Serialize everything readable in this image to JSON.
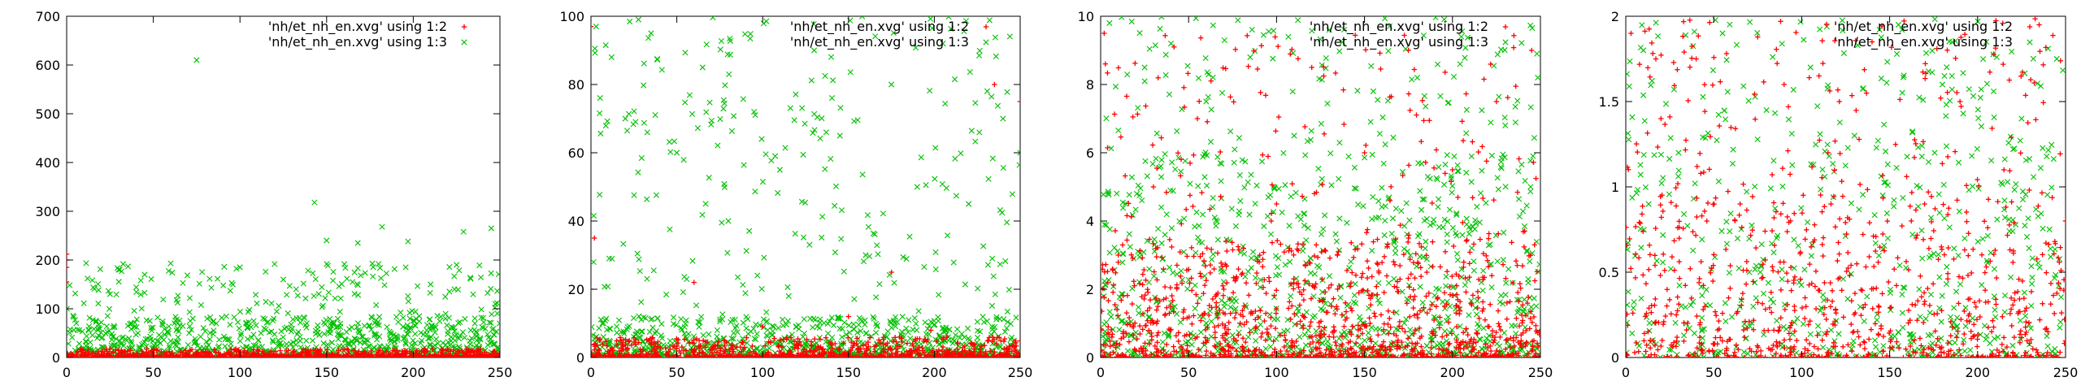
{
  "chart_data": [
    {
      "type": "scatter",
      "xlim": [
        0,
        250
      ],
      "ylim": [
        0,
        700
      ],
      "x_ticks": [
        0,
        50,
        100,
        150,
        200,
        250
      ],
      "y_ticks": [
        0,
        100,
        200,
        300,
        400,
        500,
        600,
        700
      ],
      "grid": false,
      "legend_position": "top-right",
      "series": [
        {
          "name": "'nh/et_nh_en.xvg' using 1:2",
          "color": "#ff0000",
          "marker": "plus",
          "points": [
            [
              0,
              212
            ],
            [
              0,
              200
            ],
            [
              0,
              185
            ],
            [
              0,
              155
            ],
            [
              20,
              6
            ],
            [
              45,
              4
            ],
            [
              90,
              3
            ],
            [
              110,
              8
            ],
            [
              135,
              5
            ],
            [
              160,
              2
            ],
            [
              190,
              7
            ],
            [
              210,
              4
            ],
            [
              235,
              6
            ],
            [
              248,
              3
            ]
          ]
        },
        {
          "name": "'nh/et_nh_en.xvg' using 1:3",
          "color": "#00c000",
          "marker": "cross",
          "points": [
            [
              75,
              610
            ],
            [
              143,
              318
            ],
            [
              182,
              268
            ],
            [
              229,
              258
            ],
            [
              197,
              238
            ],
            [
              168,
              235
            ],
            [
              150,
              240
            ],
            [
              60,
              193
            ],
            [
              100,
              185
            ],
            [
              225,
              190
            ],
            [
              180,
              192
            ],
            [
              30,
              180
            ],
            [
              45,
              170
            ],
            [
              245,
              265
            ],
            [
              16,
              141
            ],
            [
              25,
              130
            ],
            [
              125,
              160
            ],
            [
              210,
              150
            ]
          ]
        }
      ]
    },
    {
      "type": "scatter",
      "xlim": [
        0,
        250
      ],
      "ylim": [
        0,
        100
      ],
      "x_ticks": [
        0,
        50,
        100,
        150,
        200,
        250
      ],
      "y_ticks": [
        0,
        20,
        40,
        60,
        80,
        100
      ],
      "grid": false,
      "legend_position": "top-right",
      "series": [
        {
          "name": "'nh/et_nh_en.xvg' using 1:2",
          "color": "#ff0000",
          "marker": "plus",
          "points": [
            [
              0,
              97
            ],
            [
              0,
              20
            ],
            [
              2,
              35
            ],
            [
              60,
              22
            ],
            [
              150,
              12
            ],
            [
              198,
              8
            ],
            [
              235,
              80
            ],
            [
              250,
              75
            ],
            [
              5,
              5
            ],
            [
              100,
              9
            ],
            [
              175,
              25
            ]
          ]
        },
        {
          "name": "'nh/et_nh_en.xvg' using 1:3",
          "color": "#00c000",
          "marker": "cross",
          "points": [
            [
              3,
              97
            ],
            [
              12,
              88
            ],
            [
              20,
              70
            ],
            [
              35,
              95
            ],
            [
              50,
              60
            ],
            [
              65,
              85
            ],
            [
              80,
              40
            ],
            [
              95,
              72
            ],
            [
              110,
              55
            ],
            [
              130,
              90
            ],
            [
              145,
              65
            ],
            [
              160,
              30
            ],
            [
              175,
              80
            ],
            [
              190,
              50
            ],
            [
              205,
              92
            ],
            [
              220,
              45
            ],
            [
              240,
              70
            ],
            [
              250,
              60
            ]
          ]
        }
      ]
    },
    {
      "type": "scatter",
      "xlim": [
        0,
        250
      ],
      "ylim": [
        0,
        10
      ],
      "x_ticks": [
        0,
        50,
        100,
        150,
        200,
        250
      ],
      "y_ticks": [
        0,
        2,
        4,
        6,
        8,
        10
      ],
      "grid": false,
      "legend_position": "top-right",
      "series": [
        {
          "name": "'nh/et_nh_en.xvg' using 1:2",
          "color": "#ff0000",
          "marker": "plus",
          "points": [
            [
              2,
              9.5
            ],
            [
              10,
              3
            ],
            [
              30,
              5
            ],
            [
              55,
              7
            ],
            [
              70,
              2
            ],
            [
              100,
              4.5
            ],
            [
              120,
              8.5
            ],
            [
              150,
              6
            ],
            [
              175,
              3.5
            ],
            [
              200,
              5.5
            ],
            [
              225,
              7.5
            ],
            [
              245,
              9
            ]
          ]
        },
        {
          "name": "'nh/et_nh_en.xvg' using 1:3",
          "color": "#00c000",
          "marker": "cross",
          "points": [
            [
              5,
              9.8
            ],
            [
              25,
              8.5
            ],
            [
              40,
              9.2
            ],
            [
              60,
              7.5
            ],
            [
              85,
              8.8
            ],
            [
              110,
              6.5
            ],
            [
              130,
              9.6
            ],
            [
              155,
              7.8
            ],
            [
              180,
              8.2
            ],
            [
              205,
              9.4
            ],
            [
              230,
              6.8
            ],
            [
              248,
              8.9
            ]
          ]
        }
      ]
    },
    {
      "type": "scatter",
      "xlim": [
        0,
        250
      ],
      "ylim": [
        0,
        2
      ],
      "x_ticks": [
        0,
        50,
        100,
        150,
        200,
        250
      ],
      "y_ticks": [
        0,
        0.5,
        1,
        1.5,
        2
      ],
      "grid": false,
      "legend_position": "top-right",
      "series": [
        {
          "name": "'nh/et_nh_en.xvg' using 1:2",
          "color": "#ff0000",
          "marker": "plus",
          "points": [
            [
              3,
              1.9
            ],
            [
              20,
              1.4
            ],
            [
              40,
              1.75
            ],
            [
              65,
              0.9
            ],
            [
              90,
              1.6
            ],
            [
              115,
              1.2
            ],
            [
              140,
              1.85
            ],
            [
              165,
              0.7
            ],
            [
              190,
              1.5
            ],
            [
              215,
              1.1
            ],
            [
              235,
              1.95
            ],
            [
              250,
              0.8
            ]
          ]
        },
        {
          "name": "'nh/et_nh_en.xvg' using 1:3",
          "color": "#00c000",
          "marker": "cross",
          "points": [
            [
              10,
              1.8
            ],
            [
              30,
              1.2
            ],
            [
              55,
              1.9
            ],
            [
              80,
              1.45
            ],
            [
              105,
              1.7
            ],
            [
              130,
              1.3
            ],
            [
              155,
              1.95
            ],
            [
              180,
              1.6
            ],
            [
              205,
              1.85
            ],
            [
              225,
              1.4
            ],
            [
              245,
              1.75
            ]
          ]
        }
      ]
    }
  ]
}
